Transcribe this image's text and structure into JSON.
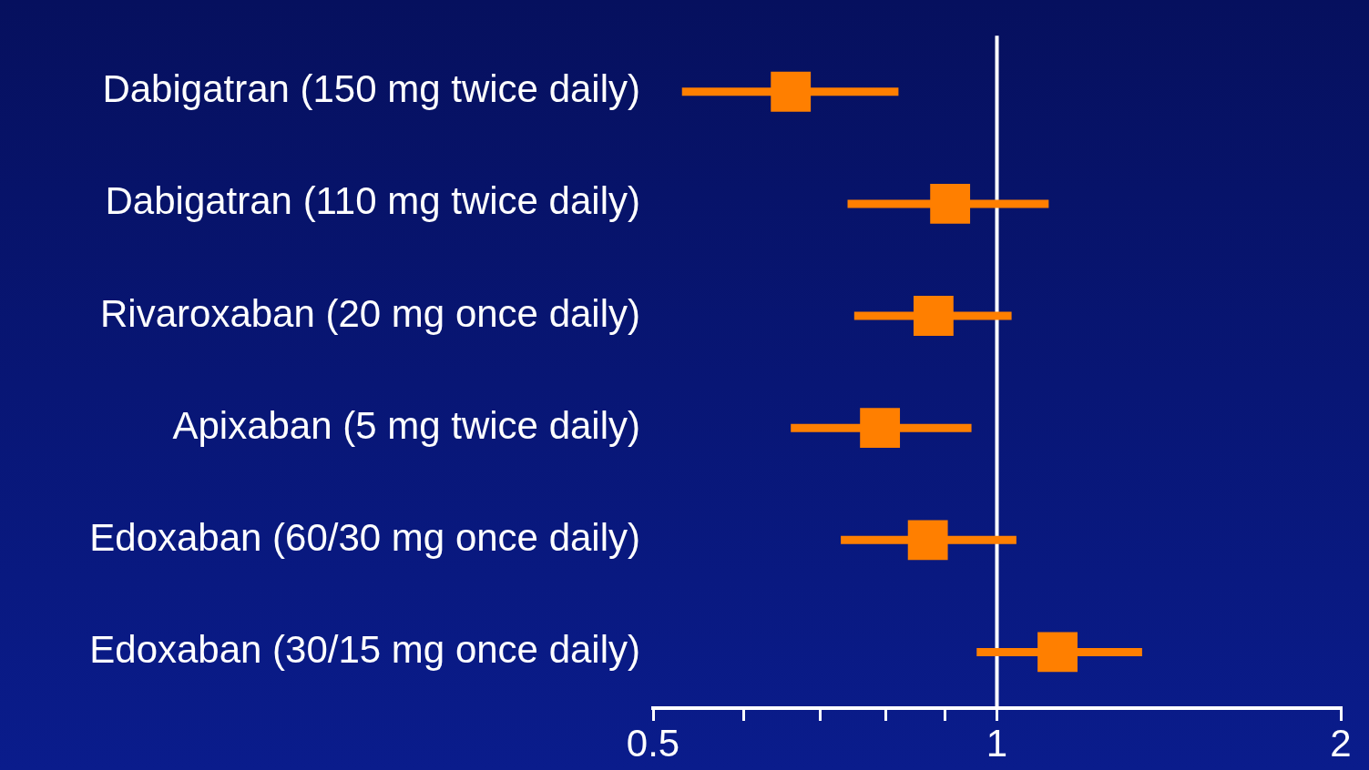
{
  "chart_data": {
    "type": "scatter",
    "orientation": "horizontal",
    "categories": [
      "Dabigatran (150 mg twice daily)",
      "Dabigatran (110 mg twice daily)",
      "Rivaroxaban (20 mg once daily)",
      "Apixaban (5 mg twice daily)",
      "Edoxaban (60/30 mg once daily)",
      "Edoxaban (30/15 mg once daily)"
    ],
    "values": [
      0.66,
      0.91,
      0.88,
      0.79,
      0.87,
      1.13
    ],
    "errors": [
      [
        0.53,
        0.82
      ],
      [
        0.74,
        1.11
      ],
      [
        0.75,
        1.03
      ],
      [
        0.66,
        0.95
      ],
      [
        0.73,
        1.04
      ],
      [
        0.96,
        1.34
      ]
    ],
    "color": "#ff7f00",
    "marker": "square",
    "log": "x",
    "grid": false,
    "legend": false,
    "xlim": [
      0.5,
      2
    ],
    "xticks": [
      0.5,
      {
        "value": 0.6,
        "label": null
      },
      {
        "value": 0.7,
        "label": null
      },
      {
        "value": 0.8,
        "label": null
      },
      {
        "value": 0.9,
        "label": null
      },
      1,
      2
    ],
    "ref_lines": [
      {
        "axis": "x",
        "value": 1,
        "color": "#ffffff"
      }
    ]
  }
}
